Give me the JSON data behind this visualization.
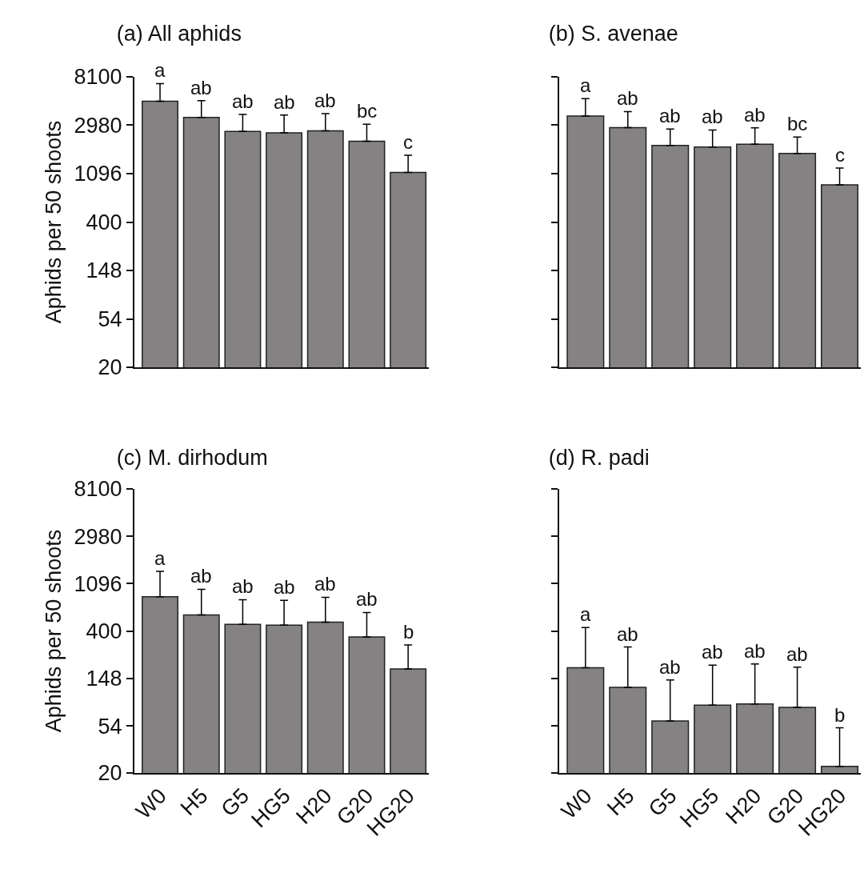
{
  "chart_data": [
    {
      "type": "bar",
      "title": "(a) All aphids",
      "ylabel": "Aphids per 50 shoots",
      "categories": [
        "W0",
        "H5",
        "G5",
        "HG5",
        "H20",
        "G20",
        "HG20"
      ],
      "color": "#858284",
      "values": [
        4900,
        3500,
        2620,
        2540,
        2650,
        2140,
        1120
      ],
      "errors": [
        [
          4900,
          7050
        ],
        [
          3500,
          4960
        ],
        [
          2620,
          3720
        ],
        [
          2540,
          3680
        ],
        [
          2650,
          3790
        ],
        [
          2140,
          3040
        ],
        [
          1120,
          1600
        ]
      ],
      "log": true,
      "ylim": [
        20,
        8100
      ],
      "yticks": [
        20,
        54,
        148,
        400,
        1096,
        2980,
        8100
      ],
      "tick_labels": "y",
      "annotations": [
        {
          "text": "a",
          "x": "W0",
          "y": 7050
        },
        {
          "text": "ab",
          "x": "H5",
          "y": 4960
        },
        {
          "text": "ab",
          "x": "G5",
          "y": 3720
        },
        {
          "text": "ab",
          "x": "HG5",
          "y": 3680
        },
        {
          "text": "ab",
          "x": "H20",
          "y": 3790
        },
        {
          "text": "bc",
          "x": "G20",
          "y": 3040
        },
        {
          "text": "c",
          "x": "HG20",
          "y": 1600
        }
      ]
    },
    {
      "type": "bar",
      "title": "(b) S. avenae",
      "categories": [
        "W0",
        "H5",
        "G5",
        "HG5",
        "H20",
        "G20",
        "HG20"
      ],
      "color": "#858284",
      "values": [
        3600,
        2830,
        1960,
        1900,
        2010,
        1660,
        870
      ],
      "errors": [
        [
          3600,
          5160
        ],
        [
          2830,
          3950
        ],
        [
          1960,
          2750
        ],
        [
          1900,
          2700
        ],
        [
          2010,
          2820
        ],
        [
          1660,
          2330
        ],
        [
          870,
          1230
        ]
      ],
      "log": true,
      "ylim": [
        20,
        8100
      ],
      "yticks": [
        {
          "value": 20,
          "label": null
        },
        {
          "value": 54,
          "label": null
        },
        {
          "value": 148,
          "label": null
        },
        {
          "value": 400,
          "label": null
        },
        {
          "value": 1096,
          "label": null
        },
        {
          "value": 2980,
          "label": null
        },
        {
          "value": 8100,
          "label": null
        }
      ],
      "tick_labels": false,
      "annotations": [
        {
          "text": "a",
          "x": "W0",
          "y": 5160
        },
        {
          "text": "ab",
          "x": "H5",
          "y": 3950
        },
        {
          "text": "ab",
          "x": "G5",
          "y": 2750
        },
        {
          "text": "ab",
          "x": "HG5",
          "y": 2700
        },
        {
          "text": "ab",
          "x": "H20",
          "y": 2820
        },
        {
          "text": "bc",
          "x": "G20",
          "y": 2330
        },
        {
          "text": "c",
          "x": "HG20",
          "y": 1230
        }
      ]
    },
    {
      "type": "bar",
      "title": "(c) M. dirhodum",
      "ylabel": "Aphids per 50 shoots",
      "categories": [
        "W0",
        "H5",
        "G5",
        "HG5",
        "H20",
        "G20",
        "HG20"
      ],
      "color": "#858284",
      "values": [
        830,
        565,
        462,
        455,
        485,
        355,
        180
      ],
      "errors": [
        [
          830,
          1420
        ],
        [
          565,
          970
        ],
        [
          462,
          780
        ],
        [
          455,
          770
        ],
        [
          485,
          820
        ],
        [
          355,
          595
        ],
        [
          180,
          300
        ]
      ],
      "log": true,
      "ylim": [
        20,
        8100
      ],
      "yticks": [
        20,
        54,
        148,
        400,
        1096,
        2980,
        8100
      ],
      "annotations": [
        {
          "text": "a",
          "x": "W0",
          "y": 1420
        },
        {
          "text": "ab",
          "x": "H5",
          "y": 970
        },
        {
          "text": "ab",
          "x": "G5",
          "y": 780
        },
        {
          "text": "ab",
          "x": "HG5",
          "y": 770
        },
        {
          "text": "ab",
          "x": "H20",
          "y": 820
        },
        {
          "text": "ab",
          "x": "G20",
          "y": 595
        },
        {
          "text": "b",
          "x": "HG20",
          "y": 300
        }
      ]
    },
    {
      "type": "bar",
      "title": "(d) R. padi",
      "categories": [
        "W0",
        "H5",
        "G5",
        "HG5",
        "H20",
        "G20",
        "HG20"
      ],
      "color": "#858284",
      "values": [
        185,
        122,
        60,
        84,
        86,
        80,
        23
      ],
      "errors": [
        [
          185,
          433
        ],
        [
          122,
          287
        ],
        [
          60,
          143
        ],
        [
          84,
          195
        ],
        [
          86,
          200
        ],
        [
          80,
          187
        ],
        [
          23,
          52
        ]
      ],
      "log": true,
      "ylim": [
        20,
        8100
      ],
      "yticks": [
        {
          "value": 20,
          "label": null
        },
        {
          "value": 54,
          "label": null
        },
        {
          "value": 148,
          "label": null
        },
        {
          "value": 400,
          "label": null
        },
        {
          "value": 1096,
          "label": null
        },
        {
          "value": 2980,
          "label": null
        },
        {
          "value": 8100,
          "label": null
        }
      ],
      "tick_labels": "x",
      "annotations": [
        {
          "text": "a",
          "x": "W0",
          "y": 433
        },
        {
          "text": "ab",
          "x": "H5",
          "y": 287
        },
        {
          "text": "ab",
          "x": "G5",
          "y": 143
        },
        {
          "text": "ab",
          "x": "HG5",
          "y": 195
        },
        {
          "text": "ab",
          "x": "H20",
          "y": 200
        },
        {
          "text": "ab",
          "x": "G20",
          "y": 187
        },
        {
          "text": "b",
          "x": "HG20",
          "y": 52
        }
      ]
    }
  ]
}
